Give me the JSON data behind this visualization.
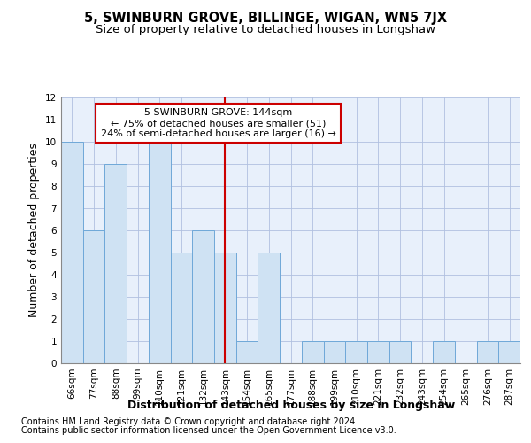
{
  "title": "5, SWINBURN GROVE, BILLINGE, WIGAN, WN5 7JX",
  "subtitle": "Size of property relative to detached houses in Longshaw",
  "xlabel": "Distribution of detached houses by size in Longshaw",
  "ylabel": "Number of detached properties",
  "categories": [
    "66sqm",
    "77sqm",
    "88sqm",
    "99sqm",
    "110sqm",
    "121sqm",
    "132sqm",
    "143sqm",
    "154sqm",
    "165sqm",
    "177sqm",
    "188sqm",
    "199sqm",
    "210sqm",
    "221sqm",
    "232sqm",
    "243sqm",
    "254sqm",
    "265sqm",
    "276sqm",
    "287sqm"
  ],
  "values": [
    10,
    6,
    9,
    0,
    10,
    5,
    6,
    5,
    1,
    5,
    0,
    1,
    1,
    1,
    1,
    1,
    0,
    1,
    0,
    1,
    1
  ],
  "bar_color": "#cfe2f3",
  "bar_edge_color": "#6fa8d8",
  "highlight_index": 7,
  "highlight_line_color": "#cc0000",
  "highlight_box_color": "#cc0000",
  "annotation_line1": "5 SWINBURN GROVE: 144sqm",
  "annotation_line2": "← 75% of detached houses are smaller (51)",
  "annotation_line3": "24% of semi-detached houses are larger (16) →",
  "ylim": [
    0,
    12
  ],
  "yticks": [
    0,
    1,
    2,
    3,
    4,
    5,
    6,
    7,
    8,
    9,
    10,
    11,
    12
  ],
  "footer_line1": "Contains HM Land Registry data © Crown copyright and database right 2024.",
  "footer_line2": "Contains public sector information licensed under the Open Government Licence v3.0.",
  "background_color": "#ffffff",
  "plot_bg_color": "#e8f0fb",
  "grid_color": "#b0c0e0",
  "title_fontsize": 10.5,
  "subtitle_fontsize": 9.5,
  "axis_label_fontsize": 9,
  "tick_fontsize": 7.5,
  "annotation_fontsize": 8,
  "footer_fontsize": 7
}
